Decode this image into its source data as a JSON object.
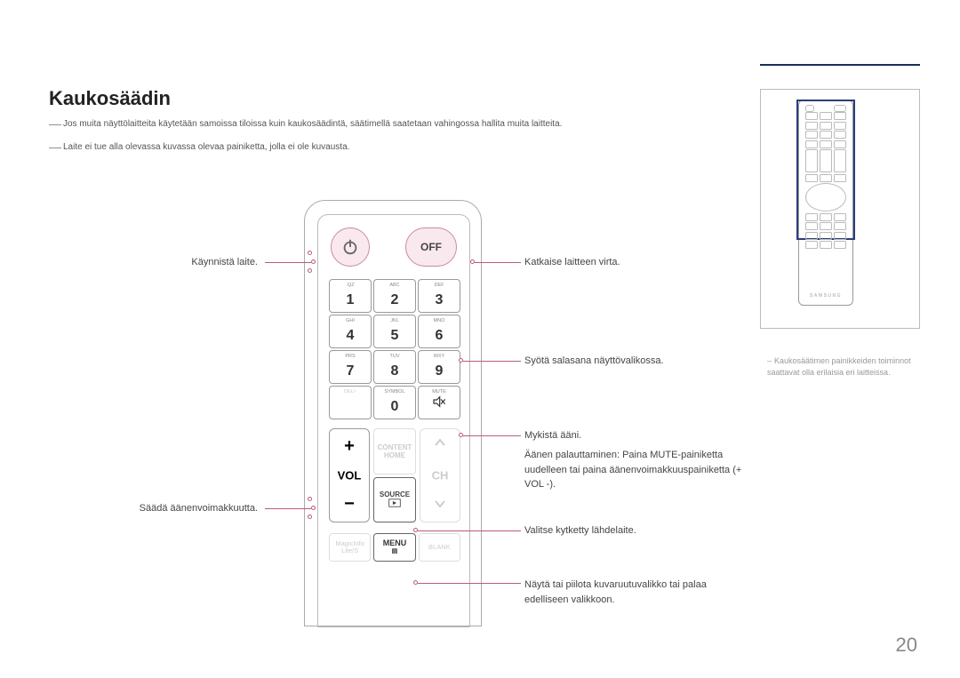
{
  "page": {
    "number": "20"
  },
  "title": "Kaukosäädin",
  "notes": {
    "n1": "Jos muita näyttölaitteita käytetään samoissa tiloissa kuin kaukosäädintä, säätimellä saatetaan vahingossa hallita muita laitteita.",
    "n2": "Laite ei tue alla olevassa kuvassa olevaa painiketta, jolla ei ole kuvausta."
  },
  "side_note": "Kaukosäätimen painikkeiden toiminnot saattavat olla erilaisia eri laitteissa.",
  "mini_brand": "SAMSUNG",
  "remote": {
    "off": "OFF",
    "numpad": [
      {
        "n": "1",
        "sub": ".QZ"
      },
      {
        "n": "2",
        "sub": "ABC"
      },
      {
        "n": "3",
        "sub": "DEF"
      },
      {
        "n": "4",
        "sub": "GHI"
      },
      {
        "n": "5",
        "sub": "JKL"
      },
      {
        "n": "6",
        "sub": "MNO"
      },
      {
        "n": "7",
        "sub": "PRS"
      },
      {
        "n": "8",
        "sub": "TUV"
      },
      {
        "n": "9",
        "sub": "WXY"
      },
      {
        "n": "",
        "sub": "DEL/-",
        "faded": true
      },
      {
        "n": "0",
        "sub": "SYMBOL"
      },
      {
        "n": "mute",
        "sub": "MUTE"
      }
    ],
    "vol": "VOL",
    "ch": "CH",
    "center": [
      {
        "label": "CONTENT\nHOME",
        "faded": true
      },
      {
        "label": "SOURCE",
        "faded": false
      }
    ],
    "menu_row": [
      {
        "top": "MagicInfo",
        "bot": "Lite/S",
        "faded": true
      },
      {
        "top": "MENU",
        "bot": "",
        "faded": false
      },
      {
        "top": "",
        "bot": "BLANK",
        "faded": true
      }
    ]
  },
  "labels": {
    "power_on": "Käynnistä laite.",
    "vol_adj": "Säädä äänenvoimakkuutta.",
    "power_off": "Katkaise laitteen virta.",
    "pin": "Syötä salasana näyttövalikossa.",
    "mute": "Mykistä ääni.",
    "mute_restore": "Äänen palauttaminen: Paina MUTE-painiketta uudelleen tai paina äänenvoimakkuuspainiketta (+ VOL -).",
    "source": "Valitse kytketty lähdelaite.",
    "menu": "Näytä tai piilota kuvaruutuvalikko tai palaa edelliseen valikkoon."
  },
  "colors": {
    "accent_line": "#1a2d5a",
    "pink_fill": "#f9e9ee",
    "pink_border": "#c98b9a",
    "conn": "#b85c7a"
  }
}
